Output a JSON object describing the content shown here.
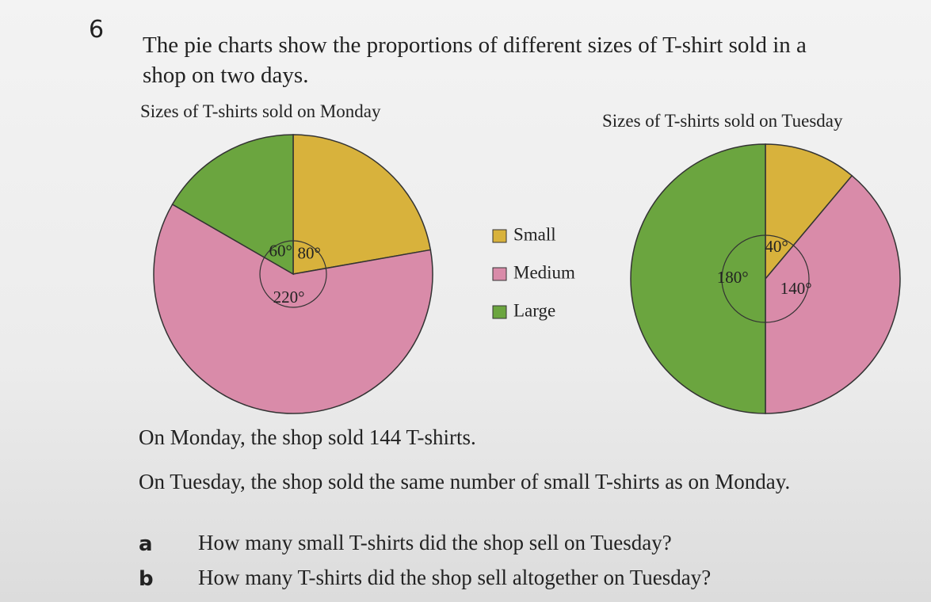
{
  "question": {
    "number": "6",
    "intro": "The pie charts show the proportions of different sizes of T-shirt sold in a shop on two days."
  },
  "legend": {
    "labels": [
      "Small",
      "Medium",
      "Large"
    ],
    "colors": [
      "#d8b23c",
      "#d98ba9",
      "#6ba53f"
    ]
  },
  "chart_data": [
    {
      "type": "pie",
      "title": "Sizes of T-shirts sold on Monday",
      "values": [
        80,
        220,
        60
      ],
      "value_labels": [
        "80°",
        "220°",
        "60°"
      ]
    },
    {
      "type": "pie",
      "title": "Sizes of T-shirts sold on Tuesday",
      "values": [
        40,
        140,
        180
      ],
      "value_labels": [
        "40°",
        "140°",
        "180°"
      ]
    }
  ],
  "text": {
    "monday": "On Monday, the shop sold 144 T-shirts.",
    "tuesday": "On Tuesday, the shop sold the same number of small T-shirts as on Monday."
  },
  "parts": [
    {
      "label": "a",
      "text": "How many small T-shirts did the shop sell on Tuesday?"
    },
    {
      "label": "b",
      "text": "How many T-shirts did the shop sell altogether on Tuesday?"
    }
  ]
}
